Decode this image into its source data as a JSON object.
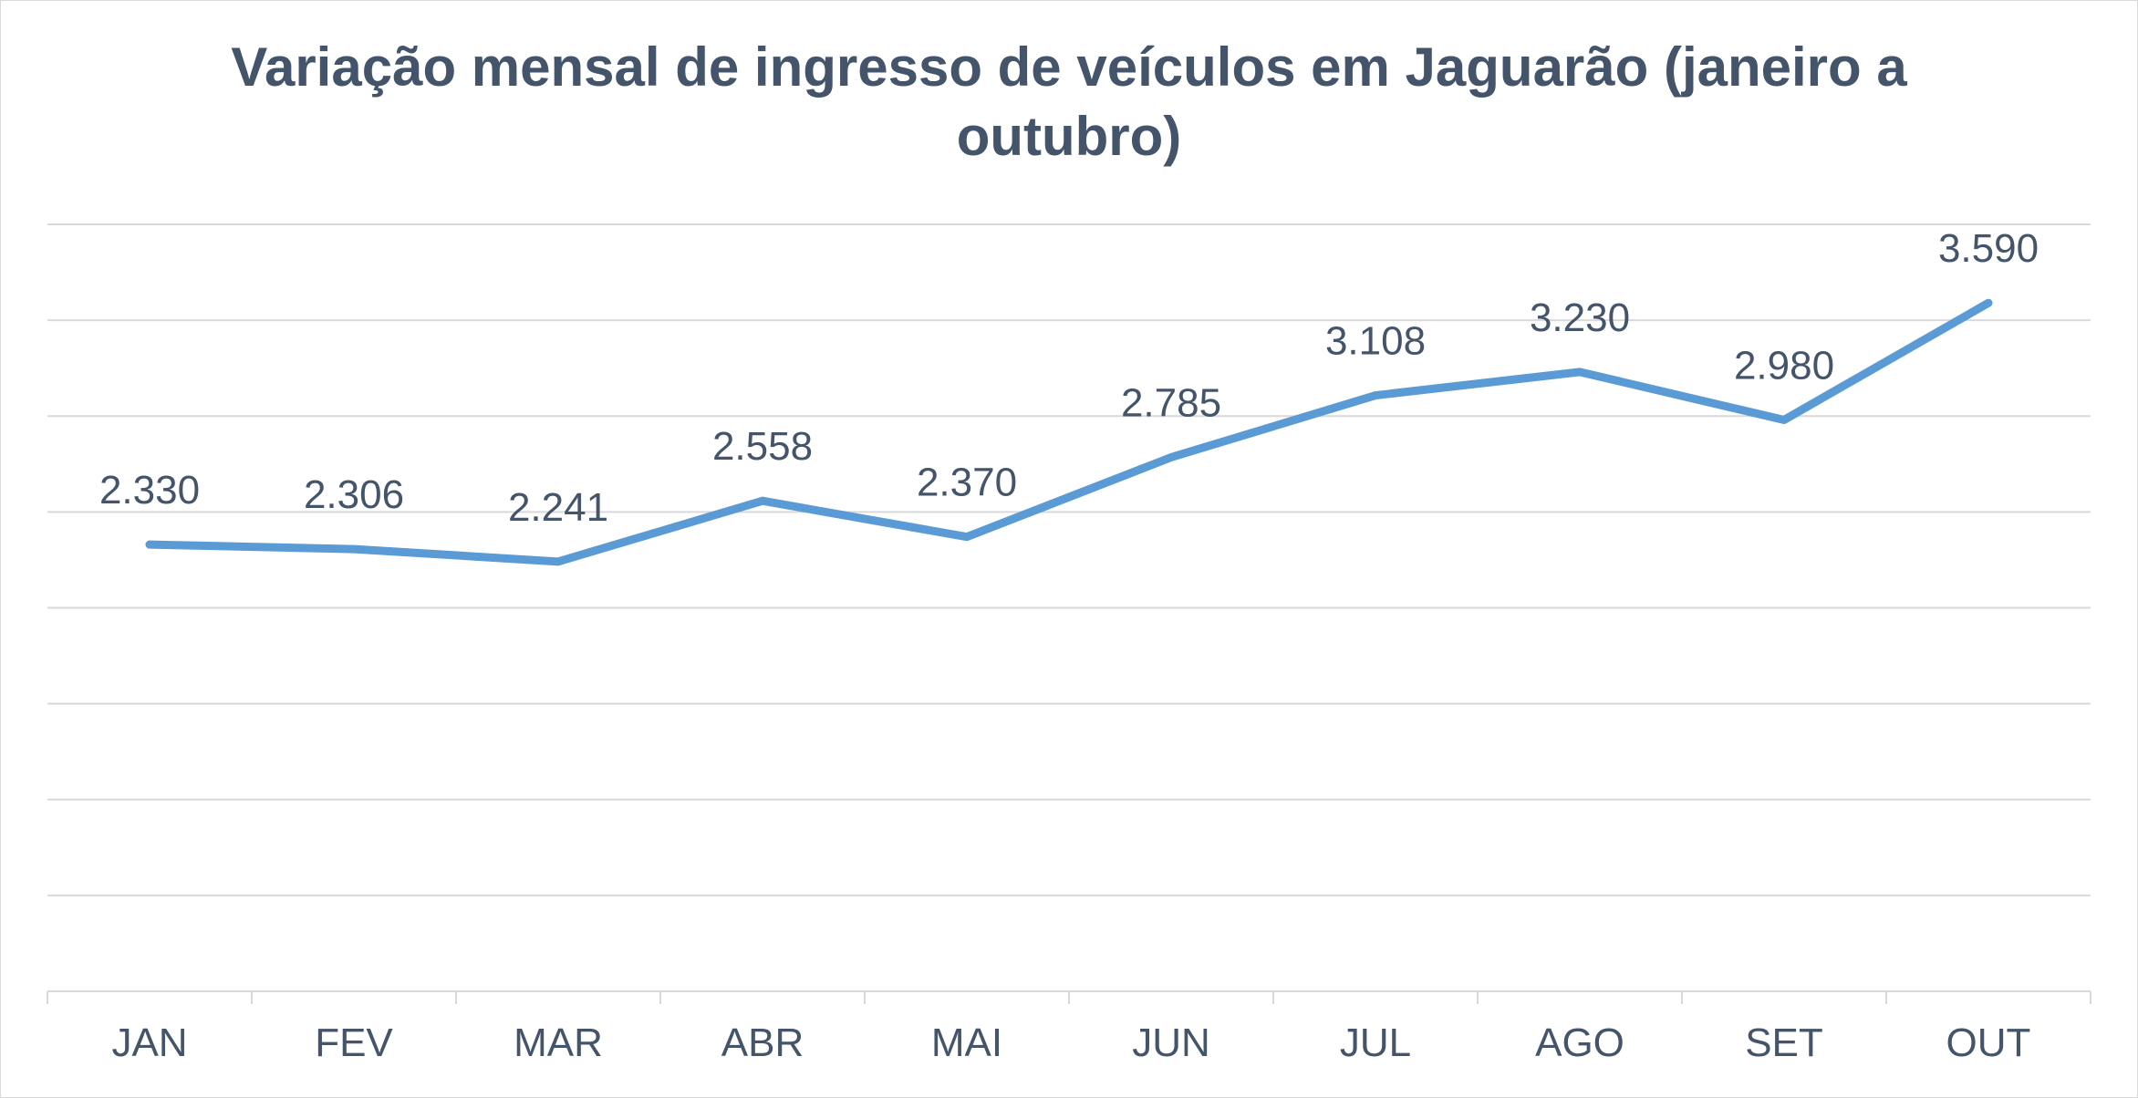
{
  "chart_data": {
    "type": "line",
    "title_lines": [
      "Variação mensal de ingresso de veículos em Jaguarão (janeiro a",
      "outubro)"
    ],
    "title": "Variação mensal de ingresso de veículos em Jaguarão (janeiro a outubro)",
    "categories": [
      "JAN",
      "FEV",
      "MAR",
      "ABR",
      "MAI",
      "JUN",
      "JUL",
      "AGO",
      "SET",
      "OUT"
    ],
    "series": [
      {
        "values": [
          2330,
          2306,
          2241,
          2558,
          2370,
          2785,
          3108,
          3230,
          2980,
          3590
        ],
        "labels": [
          "2.330",
          "2.306",
          "2.241",
          "2.558",
          "2.370",
          "2.785",
          "3.108",
          "3.230",
          "2.980",
          "3.590"
        ],
        "color": "#5b9bd5"
      }
    ],
    "ylim": [
      0,
      4000
    ],
    "y_gridlines": [
      500,
      1000,
      1500,
      2000,
      2500,
      3000,
      3500,
      4000
    ],
    "y_axis_visible": false,
    "grid": true,
    "legend": "none",
    "colors": {
      "line": "#5b9bd5",
      "text": "#44546a",
      "grid": "#d9d9d9",
      "axis": "#d9d9d9"
    }
  }
}
